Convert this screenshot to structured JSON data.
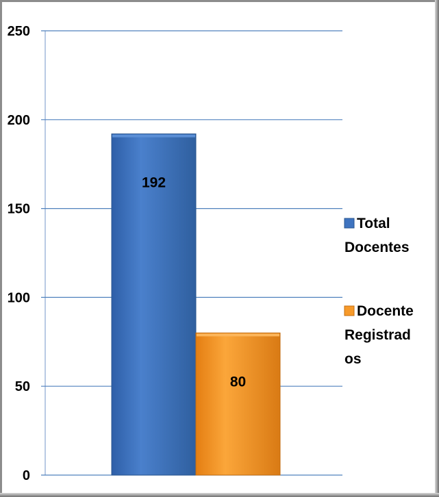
{
  "chart_data": {
    "type": "bar",
    "title": "",
    "xlabel": "",
    "ylabel": "",
    "ylim": [
      0,
      250
    ],
    "yticks": [
      0,
      50,
      100,
      150,
      200,
      250
    ],
    "grid": true,
    "legend_position": "right",
    "series": [
      {
        "name": "Total Docentes",
        "legend_lines": [
          "Total",
          "Docentes"
        ],
        "value": 192,
        "color": "#3f74c0"
      },
      {
        "name": "Docente Registrados",
        "legend_lines": [
          "Docente",
          "Registrad",
          "os"
        ],
        "value": 80,
        "color": "#f79a2a"
      }
    ]
  }
}
